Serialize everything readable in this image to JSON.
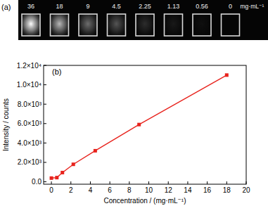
{
  "image_panel": {
    "label": "(a)",
    "concentrations": [
      "36",
      "18",
      "9",
      "4.5",
      "2.25",
      "1.13",
      "0.56",
      "0"
    ],
    "unit": "mg·mL⁻¹"
  },
  "chart_data": {
    "type": "line",
    "annotations": [
      "(b)"
    ],
    "x_label": "Concentration / (mg·mL⁻¹)",
    "y_label": "Intensity / counts",
    "x": [
      0,
      0.56,
      1.13,
      2.25,
      4.5,
      9,
      18
    ],
    "values": [
      380,
      430,
      950,
      1800,
      3200,
      5900,
      11000
    ],
    "color": "#e8231d",
    "marker": "square",
    "line_style": "solid",
    "xlim": [
      -0.8,
      20
    ],
    "xticks": [
      0,
      2,
      4,
      6,
      8,
      10,
      12,
      14,
      16,
      18,
      20
    ],
    "ylim": [
      -250,
      12000
    ],
    "yticks": [
      {
        "value": 0,
        "label": "0.0"
      },
      {
        "value": 2000,
        "label": "2.0×10³"
      },
      {
        "value": 4000,
        "label": "4.0×10³"
      },
      {
        "value": 6000,
        "label": "6.0×10³"
      },
      {
        "value": 8000,
        "label": "8.0×10³"
      },
      {
        "value": 10000,
        "label": "1.0×10⁴"
      },
      {
        "value": 12000,
        "label": "1.2×10⁴"
      }
    ],
    "grid": false
  }
}
